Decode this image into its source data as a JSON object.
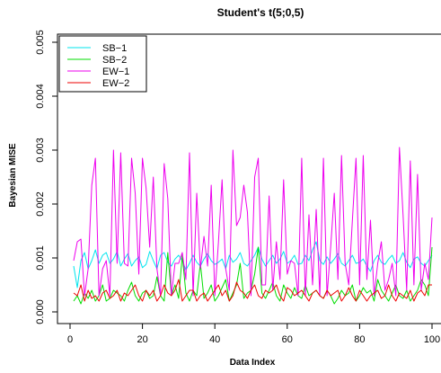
{
  "chart_data": {
    "type": "line",
    "title": "Student's t(5;0,5)",
    "xlabel": "Data Index",
    "ylabel": "Bayesian MISE",
    "xlim": [
      0,
      100
    ],
    "ylim": [
      0,
      0.005
    ],
    "xticks": [
      0,
      20,
      40,
      60,
      80,
      100
    ],
    "xtick_labels": [
      "0",
      "20",
      "40",
      "60",
      "80",
      "100"
    ],
    "yticks": [
      0,
      0.001,
      0.002,
      0.003,
      0.004,
      0.005
    ],
    "ytick_labels": [
      "0.000",
      "0.001",
      "0.002",
      "0.003",
      "0.004",
      "0.005"
    ],
    "grid": false,
    "legend": "top-left",
    "x": [
      1,
      2,
      3,
      4,
      5,
      6,
      7,
      8,
      9,
      10,
      11,
      12,
      13,
      14,
      15,
      16,
      17,
      18,
      19,
      20,
      21,
      22,
      23,
      24,
      25,
      26,
      27,
      28,
      29,
      30,
      31,
      32,
      33,
      34,
      35,
      36,
      37,
      38,
      39,
      40,
      41,
      42,
      43,
      44,
      45,
      46,
      47,
      48,
      49,
      50,
      51,
      52,
      53,
      54,
      55,
      56,
      57,
      58,
      59,
      60,
      61,
      62,
      63,
      64,
      65,
      66,
      67,
      68,
      69,
      70,
      71,
      72,
      73,
      74,
      75,
      76,
      77,
      78,
      79,
      80,
      81,
      82,
      83,
      84,
      85,
      86,
      87,
      88,
      89,
      90,
      91,
      92,
      93,
      94,
      95,
      96,
      97,
      98,
      99,
      100
    ],
    "series": [
      {
        "name": "SB−1",
        "color": "#00e5ee",
        "values": [
          0.00085,
          0.00045,
          0.00095,
          0.0011,
          0.0008,
          0.00095,
          0.00115,
          0.0009,
          0.00105,
          0.0011,
          0.0009,
          0.00098,
          0.00112,
          0.00085,
          0.00098,
          0.00108,
          0.00085,
          0.00095,
          0.00102,
          0.00082,
          0.00088,
          0.00112,
          0.00095,
          0.0008,
          0.00105,
          0.0011,
          0.00092,
          0.00085,
          0.00098,
          0.00105,
          0.00095,
          0.00078,
          0.0009,
          0.00105,
          0.00092,
          0.00085,
          0.00098,
          0.00108,
          0.00095,
          0.00088,
          0.00092,
          0.00098,
          0.0008,
          0.00105,
          0.00092,
          0.00098,
          0.0011,
          0.0009,
          0.00085,
          0.00095,
          0.00105,
          0.0012,
          0.00098,
          0.00085,
          0.00095,
          0.00105,
          0.0009,
          0.00098,
          0.00112,
          0.0009,
          0.00095,
          0.00105,
          0.00088,
          0.0009,
          0.00105,
          0.00095,
          0.00115,
          0.0013,
          0.00095,
          0.00088,
          0.00102,
          0.0009,
          0.00098,
          0.00108,
          0.0009,
          0.00085,
          0.00095,
          0.00105,
          0.0009,
          0.00092,
          0.00098,
          0.00085,
          0.00075,
          0.00095,
          0.00105,
          0.00092,
          0.00088,
          0.00098,
          0.00105,
          0.0009,
          0.00095,
          0.0011,
          0.00092,
          0.00082,
          0.00098,
          0.00102,
          0.0009,
          0.00085,
          0.00095,
          0.00105
        ]
      },
      {
        "name": "SB−2",
        "color": "#00dd00",
        "values": [
          0.0002,
          0.0003,
          0.00015,
          0.00035,
          0.00025,
          0.0004,
          0.0002,
          0.0003,
          0.0005,
          0.0002,
          0.00025,
          0.0004,
          0.00035,
          0.0003,
          0.0002,
          0.0004,
          0.00055,
          0.0003,
          0.0002,
          0.00035,
          0.0004,
          0.00025,
          0.0003,
          0.00065,
          0.0003,
          0.0002,
          0.0011,
          0.0003,
          0.0005,
          0.00025,
          0.00105,
          0.00035,
          0.0002,
          0.0004,
          0.0003,
          0.0009,
          0.00025,
          0.00035,
          0.0005,
          0.0002,
          0.0003,
          0.00045,
          0.0006,
          0.0002,
          0.00035,
          0.0005,
          0.0009,
          0.00025,
          0.00035,
          0.0004,
          0.0007,
          0.0012,
          0.00035,
          0.00025,
          0.0004,
          0.00055,
          0.0003,
          0.0002,
          0.0005,
          0.00035,
          0.00025,
          0.00045,
          0.0003,
          0.00025,
          0.0005,
          0.0003,
          0.00035,
          0.0004,
          0.0003,
          0.00025,
          0.0004,
          0.0003,
          0.00015,
          0.00025,
          0.0004,
          0.0003,
          0.00035,
          0.0005,
          0.0002,
          0.0003,
          0.00045,
          0.00035,
          0.0004,
          0.0002,
          0.0006,
          0.0004,
          0.0003,
          0.0002,
          0.00035,
          0.0005,
          0.0003,
          0.00025,
          0.0004,
          0.0002,
          0.0003,
          0.0004,
          0.0006,
          0.0005,
          0.0003,
          0.0012
        ]
      },
      {
        "name": "EW−1",
        "color": "#ee00ee",
        "values": [
          0.00095,
          0.0013,
          0.00135,
          0.0003,
          0.0008,
          0.00235,
          0.00285,
          0.0003,
          0.0008,
          0.00095,
          0.0003,
          0.003,
          0.0009,
          0.00295,
          0.0009,
          0.00085,
          0.00285,
          0.0022,
          0.0007,
          0.00285,
          0.0023,
          0.0012,
          0.0025,
          0.0008,
          0.0003,
          0.00275,
          0.0021,
          0.0003,
          0.0009,
          0.0009,
          0.0011,
          0.0006,
          0.00295,
          0.0003,
          0.0022,
          0.0008,
          0.0014,
          0.00085,
          0.00235,
          0.0003,
          0.0013,
          0.00245,
          0.0008,
          0.0004,
          0.003,
          0.0016,
          0.00175,
          0.00235,
          0.00185,
          0.0003,
          0.0025,
          0.00285,
          0.0005,
          0.0005,
          0.00215,
          0.0004,
          0.0013,
          0.0006,
          0.00245,
          0.0007,
          0.00095,
          0.0009,
          0.0003,
          0.00285,
          0.0003,
          0.0018,
          0.0005,
          0.0019,
          0.0003,
          0.00285,
          0.0003,
          0.0012,
          0.0022,
          0.0006,
          0.0029,
          0.0009,
          0.0005,
          0.0017,
          0.00285,
          0.0005,
          0.0029,
          0.0006,
          0.0017,
          0.0003,
          0.0009,
          0.0013,
          0.0004,
          0.0006,
          0.0009,
          0.0003,
          0.00305,
          0.0018,
          0.0004,
          0.0028,
          0.0005,
          0.00255,
          0.0004,
          0.0009,
          0.0006,
          0.00175
        ]
      },
      {
        "name": "EW−2",
        "color": "#ee0000",
        "values": [
          0.00035,
          0.0003,
          0.0005,
          0.0002,
          0.0004,
          0.00025,
          0.0003,
          0.0002,
          0.00035,
          0.0004,
          0.00025,
          0.0003,
          0.0004,
          0.0002,
          0.00035,
          0.0003,
          0.0004,
          0.0005,
          0.0003,
          0.0002,
          0.0004,
          0.0003,
          0.0004,
          0.0002,
          0.0003,
          0.0005,
          0.00035,
          0.0003,
          0.0004,
          0.0006,
          0.0002,
          0.0003,
          0.0004,
          0.0004,
          0.0002,
          0.0003,
          0.00035,
          0.0002,
          0.0003,
          0.0004,
          0.0005,
          0.0003,
          0.0004,
          0.0002,
          0.0003,
          0.00055,
          0.0004,
          0.00035,
          0.00025,
          0.0004,
          0.0005,
          0.0003,
          0.00025,
          0.0004,
          0.00035,
          0.0004,
          0.0005,
          0.0003,
          0.0002,
          0.00045,
          0.0004,
          0.0003,
          0.00035,
          0.0004,
          0.0003,
          0.0002,
          0.00035,
          0.0004,
          0.0003,
          0.00025,
          0.0004,
          0.0003,
          0.00035,
          0.0004,
          0.0002,
          0.0003,
          0.00045,
          0.0003,
          0.0002,
          0.0004,
          0.0003,
          0.0002,
          0.0003,
          0.00035,
          0.0004,
          0.00025,
          0.0003,
          0.0005,
          0.0003,
          0.0002,
          0.00035,
          0.0003,
          0.00025,
          0.0004,
          0.0002,
          0.00035,
          0.0004,
          0.0003,
          0.0005,
          0.0005
        ]
      }
    ]
  }
}
